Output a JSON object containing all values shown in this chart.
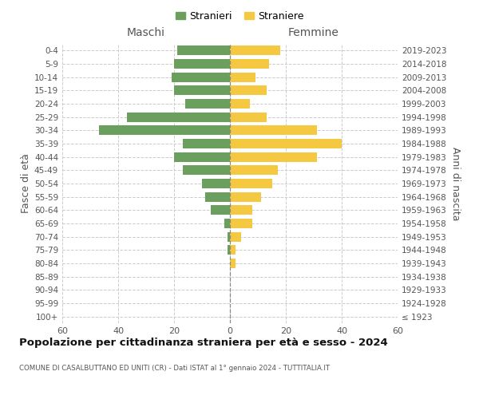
{
  "age_groups": [
    "100+",
    "95-99",
    "90-94",
    "85-89",
    "80-84",
    "75-79",
    "70-74",
    "65-69",
    "60-64",
    "55-59",
    "50-54",
    "45-49",
    "40-44",
    "35-39",
    "30-34",
    "25-29",
    "20-24",
    "15-19",
    "10-14",
    "5-9",
    "0-4"
  ],
  "birth_years": [
    "≤ 1923",
    "1924-1928",
    "1929-1933",
    "1934-1938",
    "1939-1943",
    "1944-1948",
    "1949-1953",
    "1954-1958",
    "1959-1963",
    "1964-1968",
    "1969-1973",
    "1974-1978",
    "1979-1983",
    "1984-1988",
    "1989-1993",
    "1994-1998",
    "1999-2003",
    "2004-2008",
    "2009-2013",
    "2014-2018",
    "2019-2023"
  ],
  "males": [
    0,
    0,
    0,
    0,
    0,
    1,
    1,
    2,
    7,
    9,
    10,
    17,
    20,
    17,
    47,
    37,
    16,
    20,
    21,
    20,
    19
  ],
  "females": [
    0,
    0,
    0,
    0,
    2,
    2,
    4,
    8,
    8,
    11,
    15,
    17,
    31,
    40,
    31,
    13,
    7,
    13,
    9,
    14,
    18
  ],
  "male_color": "#6a9f5e",
  "female_color": "#f5c842",
  "background_color": "#ffffff",
  "grid_color": "#cccccc",
  "title": "Popolazione per cittadinanza straniera per età e sesso - 2024",
  "subtitle": "COMUNE DI CASALBUTTANO ED UNITI (CR) - Dati ISTAT al 1° gennaio 2024 - TUTTITALIA.IT",
  "male_legend_label": "Stranieri",
  "female_legend_label": "Straniere",
  "left_axis_label": "Fasce di età",
  "right_axis_label": "Anni di nascita",
  "maschi_label": "Maschi",
  "femmine_label": "Femmine",
  "xlim": 60
}
